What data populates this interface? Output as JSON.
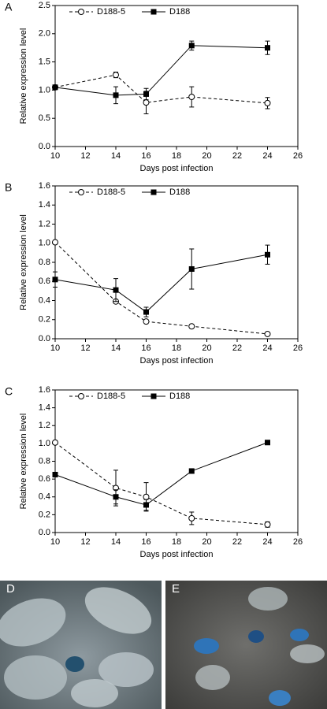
{
  "chart_data": [
    {
      "type": "line",
      "panel": "A",
      "xlabel": "Days post infection",
      "ylabel": "Relative expression level",
      "x": [
        10,
        14,
        16,
        19,
        24
      ],
      "xlim": [
        10,
        26
      ],
      "xticks": [
        10,
        12,
        14,
        16,
        18,
        20,
        22,
        24,
        26
      ],
      "ylim": [
        0,
        2.5
      ],
      "yticks": [
        {
          "value": 0,
          "label": "0.0"
        },
        0.5,
        {
          "value": 1,
          "label": "1.0"
        },
        1.5,
        {
          "value": 2,
          "label": "2.0"
        },
        2.5
      ],
      "legend": "top-left",
      "series": [
        {
          "name": "D188-5",
          "color": "#000000",
          "marker": "open-circle",
          "dash": true,
          "values": [
            1.05,
            1.27,
            0.78,
            0.88,
            0.77
          ],
          "errors": [
            0.02,
            0.05,
            0.2,
            0.18,
            0.1
          ]
        },
        {
          "name": "D188",
          "color": "#000000",
          "marker": "filled-square",
          "dash": false,
          "values": [
            1.05,
            0.91,
            0.93,
            1.79,
            1.75
          ],
          "errors": [
            0.03,
            0.15,
            0.1,
            0.08,
            0.12
          ]
        }
      ]
    },
    {
      "type": "line",
      "panel": "B",
      "xlabel": "Days post infection",
      "ylabel": "Relative expression level",
      "x": [
        10,
        14,
        16,
        19,
        24
      ],
      "xlim": [
        10,
        26
      ],
      "xticks": [
        10,
        12,
        14,
        16,
        18,
        20,
        22,
        24,
        26
      ],
      "ylim": [
        0,
        1.6
      ],
      "yticks": [
        {
          "value": 0,
          "label": "0.0"
        },
        0.2,
        0.4,
        0.6,
        0.8,
        {
          "value": 1,
          "label": "1.0"
        },
        1.2,
        1.4,
        1.6
      ],
      "legend": "top-left",
      "series": [
        {
          "name": "D188-5",
          "color": "#000000",
          "marker": "open-circle",
          "dash": true,
          "values": [
            1.01,
            0.39,
            0.18,
            0.13,
            0.05
          ],
          "errors": [
            0.02,
            0.02,
            0.02,
            0.01,
            0.01
          ]
        },
        {
          "name": "D188",
          "color": "#000000",
          "marker": "filled-square",
          "dash": false,
          "values": [
            0.62,
            0.51,
            0.28,
            0.73,
            0.88
          ],
          "errors": [
            0.08,
            0.12,
            0.05,
            0.21,
            0.1
          ]
        }
      ]
    },
    {
      "type": "line",
      "panel": "C",
      "xlabel": "Days post infection",
      "ylabel": "Relative expression level",
      "x": [
        10,
        14,
        16,
        19,
        24
      ],
      "xlim": [
        10,
        26
      ],
      "xticks": [
        10,
        12,
        14,
        16,
        18,
        20,
        22,
        24,
        26
      ],
      "ylim": [
        0,
        1.6
      ],
      "yticks": [
        {
          "value": 0,
          "label": "0.0"
        },
        0.2,
        0.4,
        0.6,
        0.8,
        {
          "value": 1,
          "label": "1.0"
        },
        1.2,
        1.4,
        1.6
      ],
      "legend": "top-left",
      "series": [
        {
          "name": "D188-5",
          "color": "#000000",
          "marker": "open-circle",
          "dash": true,
          "values": [
            1.01,
            0.5,
            0.4,
            0.16,
            0.09
          ],
          "errors": [
            0.02,
            0.2,
            0.16,
            0.07,
            0.03
          ]
        },
        {
          "name": "D188",
          "color": "#000000",
          "marker": "filled-square",
          "dash": false,
          "values": [
            0.65,
            0.4,
            0.31,
            0.69,
            1.01
          ],
          "errors": [
            0.02,
            0.08,
            0.06,
            0.02,
            0.02
          ]
        }
      ]
    }
  ],
  "photos": [
    {
      "label": "D"
    },
    {
      "label": "E"
    }
  ]
}
